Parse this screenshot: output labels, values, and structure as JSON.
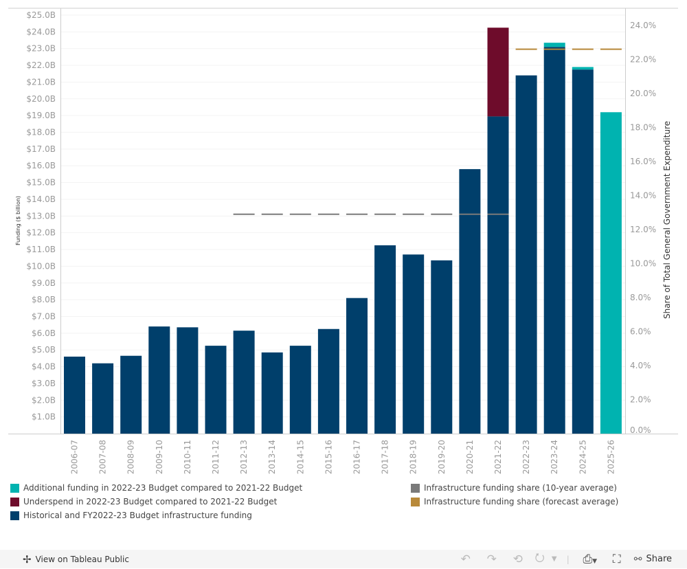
{
  "chart_data": {
    "type": "bar",
    "stacked": true,
    "categories": [
      "2006-07",
      "2007-08",
      "2008-09",
      "2009-10",
      "2010-11",
      "2011-12",
      "2012-13",
      "2013-14",
      "2014-15",
      "2015-16",
      "2016-17",
      "2017-18",
      "2018-19",
      "2019-20",
      "2020-21",
      "2021-22",
      "2022-23",
      "2023-24",
      "2024-25",
      "2025-26"
    ],
    "series": [
      {
        "name": "Historical and FY2022-23 Budget infrastructure funding",
        "color": "#003f6b",
        "axis": "left",
        "values": [
          4.6,
          4.2,
          4.65,
          6.4,
          6.35,
          5.25,
          6.15,
          4.85,
          5.25,
          6.25,
          8.1,
          11.25,
          10.7,
          10.35,
          15.8,
          18.95,
          21.4,
          23.1,
          21.75,
          0
        ]
      },
      {
        "name": "Underspend in 2022-23 Budget compared to 2021-22 Budget",
        "color": "#6e0c2b",
        "axis": "left",
        "values": [
          0,
          0,
          0,
          0,
          0,
          0,
          0,
          0,
          0,
          0,
          0,
          0,
          0,
          0,
          0,
          5.3,
          0,
          0,
          0,
          0
        ]
      },
      {
        "name": "Additional funding in 2022-23 Budget compared to 2021-22 Budget",
        "color": "#00b3b0",
        "axis": "left",
        "values": [
          0,
          0,
          0,
          0,
          0,
          0,
          0,
          0,
          0,
          0,
          0,
          0,
          0,
          0,
          0,
          0,
          0,
          0.25,
          0.15,
          19.2
        ]
      }
    ],
    "reference_lines": [
      {
        "name": "Infrastructure funding share (10-year average)",
        "color": "#7a7a7a",
        "axis": "right",
        "value": 12.9,
        "categories": [
          "2012-13",
          "2013-14",
          "2014-15",
          "2015-16",
          "2016-17",
          "2017-18",
          "2018-19",
          "2019-20",
          "2020-21",
          "2021-22"
        ]
      },
      {
        "name": "Infrastructure funding share (forecast average)",
        "color": "#b8893a",
        "axis": "right",
        "value": 22.6,
        "categories": [
          "2022-23",
          "2023-24",
          "2024-25",
          "2025-26"
        ]
      }
    ],
    "left_axis": {
      "title": "Funding ($ billion)",
      "range": [
        0,
        25
      ],
      "ticks": [
        "$1.0B",
        "$2.0B",
        "$3.0B",
        "$4.0B",
        "$5.0B",
        "$6.0B",
        "$7.0B",
        "$8.0B",
        "$9.0B",
        "$10.0B",
        "$11.0B",
        "$12.0B",
        "$13.0B",
        "$14.0B",
        "$15.0B",
        "$16.0B",
        "$17.0B",
        "$18.0B",
        "$19.0B",
        "$20.0B",
        "$21.0B",
        "$22.0B",
        "$23.0B",
        "$24.0B",
        "$25.0B"
      ]
    },
    "right_axis": {
      "title": "Share of Total General Government Expenditure",
      "range": [
        0,
        24
      ],
      "ticks": [
        "0.0%",
        "2.0%",
        "4.0%",
        "6.0%",
        "8.0%",
        "10.0%",
        "12.0%",
        "14.0%",
        "16.0%",
        "18.0%",
        "20.0%",
        "22.0%",
        "24.0%"
      ]
    },
    "grid": true,
    "legend_position": "bottom"
  },
  "legend": {
    "left": [
      {
        "label": "Additional funding in 2022-23 Budget compared to 2021-22 Budget",
        "color": "#00b3b0"
      },
      {
        "label": "Underspend in 2022-23 Budget compared to 2021-22 Budget",
        "color": "#6e0c2b"
      },
      {
        "label": "Historical and FY2022-23 Budget infrastructure funding",
        "color": "#003f6b"
      }
    ],
    "right": [
      {
        "label": "Infrastructure funding share (10-year average)",
        "color": "#7a7a7a"
      },
      {
        "label": "Infrastructure funding share (forecast average)",
        "color": "#b8893a"
      }
    ]
  },
  "footer": {
    "view_label": "View on Tableau Public",
    "share_label": "Share",
    "icons": [
      "undo-icon",
      "redo-icon",
      "revert-icon",
      "refresh-icon",
      "dropdown-icon",
      "download-icon",
      "fullscreen-icon",
      "share-icon"
    ]
  }
}
